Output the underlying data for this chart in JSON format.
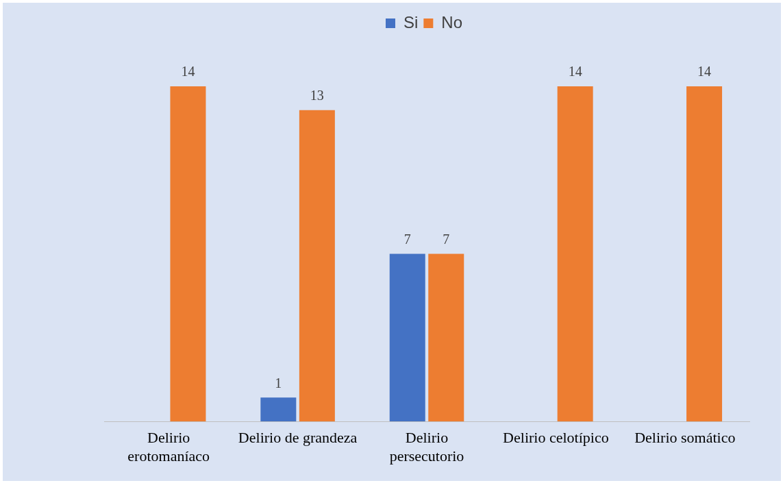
{
  "chart_data": {
    "type": "bar",
    "categories": [
      "Delirio erotomaníaco",
      "Delirio de grandeza",
      "Delirio persecutorio",
      "Delirio celotípico",
      "Delirio somático"
    ],
    "series": [
      {
        "name": "Si",
        "color": "#4472c4",
        "values": [
          null,
          1,
          7,
          null,
          null
        ]
      },
      {
        "name": "No",
        "color": "#ed7d31",
        "values": [
          14,
          13,
          7,
          14,
          14
        ]
      }
    ],
    "relative": false,
    "data_labels": true,
    "legend": "top",
    "grid": false
  }
}
